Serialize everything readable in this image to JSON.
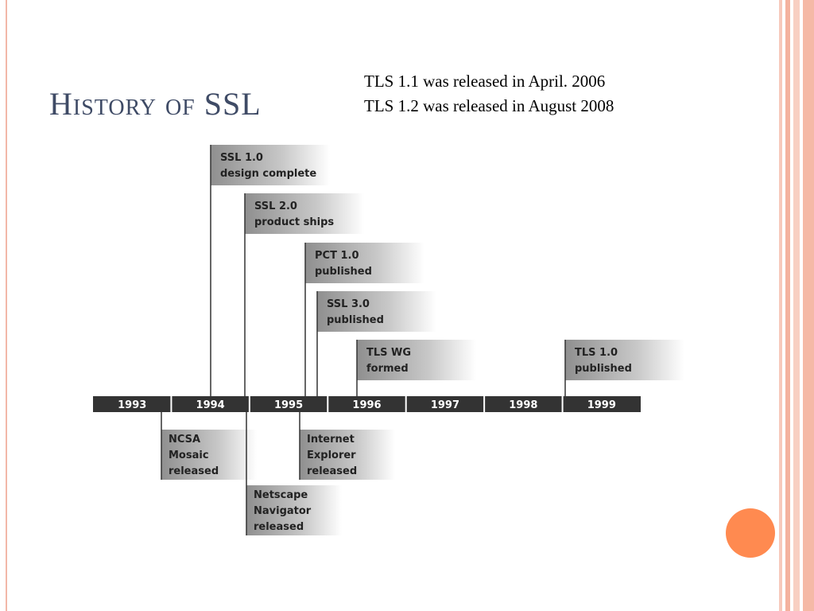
{
  "header": {
    "title": "History of SSL"
  },
  "notes": [
    "TLS 1.1 was released in April. 2006",
    "TLS 1.2 was released in August 2008"
  ],
  "timeline": {
    "years": [
      "1993",
      "1994",
      "1995",
      "1996",
      "1997",
      "1998",
      "1999"
    ],
    "events_above": [
      {
        "lines": [
          "SSL 1.0",
          "design complete"
        ]
      },
      {
        "lines": [
          "SSL 2.0",
          "product ships"
        ]
      },
      {
        "lines": [
          "PCT 1.0",
          "published"
        ]
      },
      {
        "lines": [
          "SSL 3.0",
          "published"
        ]
      },
      {
        "lines": [
          "TLS WG",
          "formed"
        ]
      },
      {
        "lines": [
          "TLS 1.0",
          "published"
        ]
      }
    ],
    "events_below": [
      {
        "lines": [
          "NCSA",
          "Mosaic",
          "released"
        ]
      },
      {
        "lines": [
          "Netscape",
          "Navigator",
          "released"
        ]
      },
      {
        "lines": [
          "Internet",
          "Explorer",
          "released"
        ]
      }
    ]
  }
}
